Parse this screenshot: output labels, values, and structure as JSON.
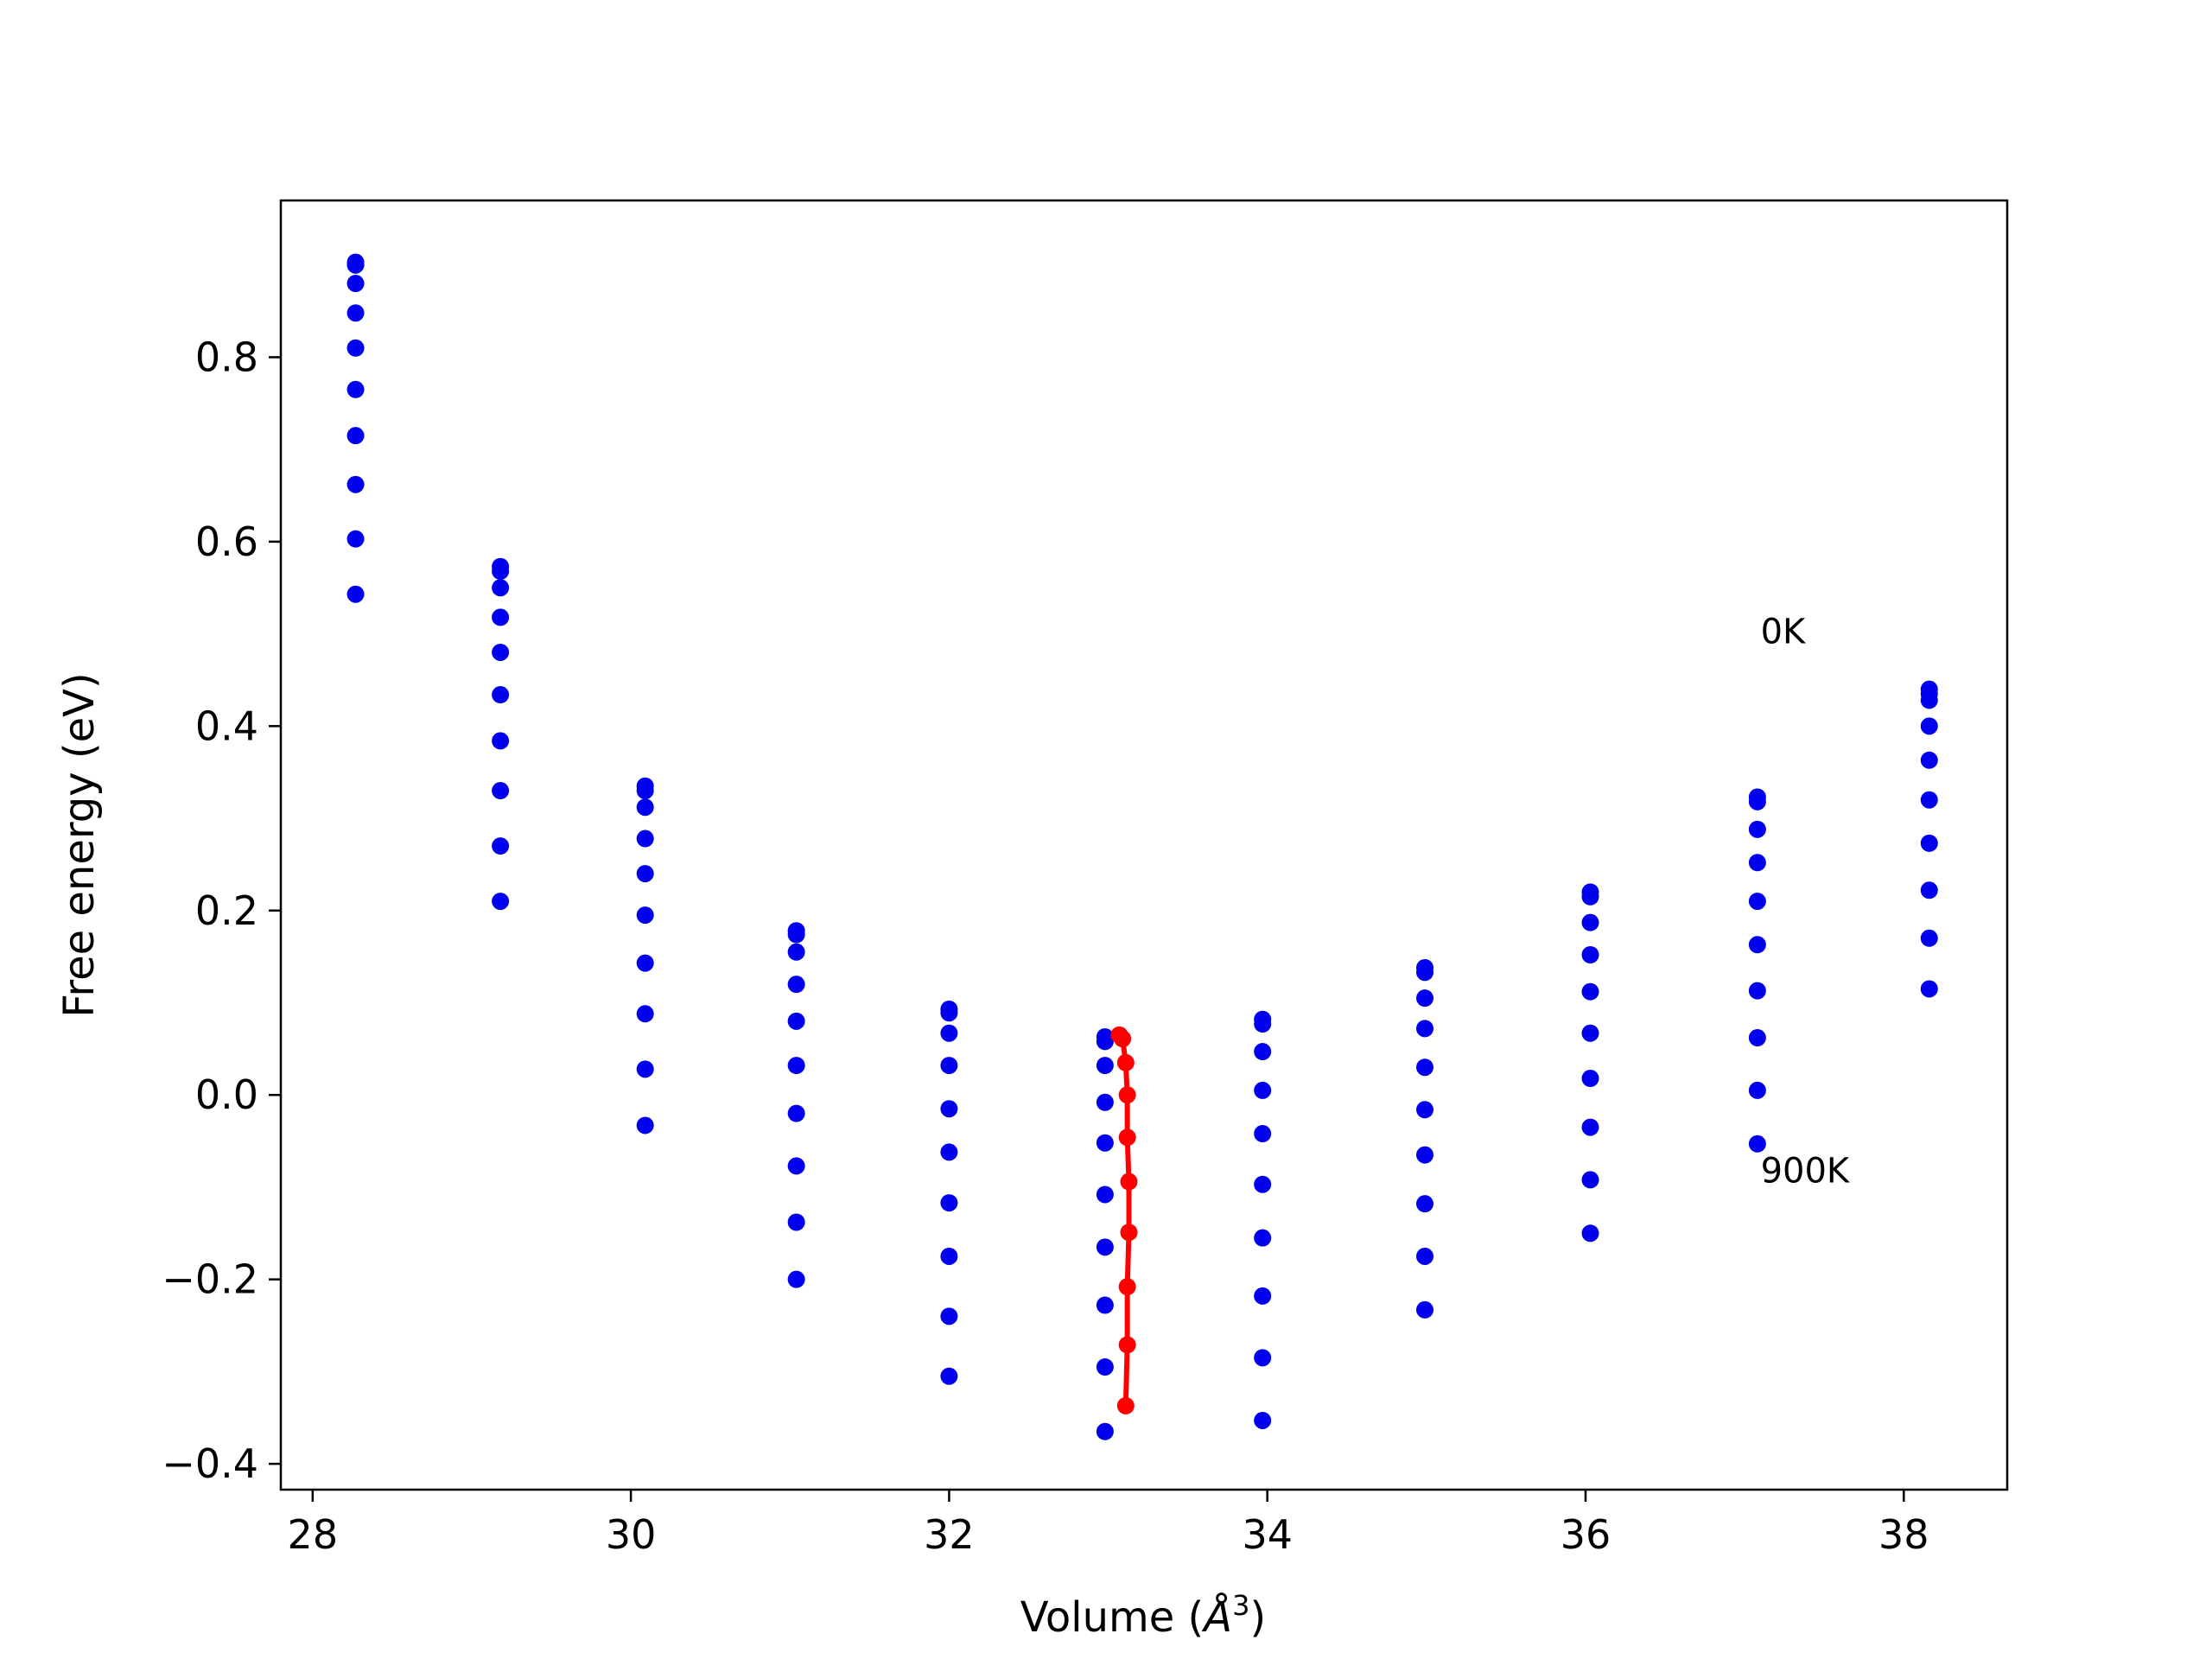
{
  "chart_data": {
    "type": "line",
    "xlabel": "Volume (Å³)",
    "xlabel_main": "Volume (",
    "xlabel_unit": "Å",
    "xlabel_exp": "3",
    "xlabel_close": ")",
    "ylabel": "Free energy (eV)",
    "xlim": [
      27.8,
      38.65
    ],
    "ylim": [
      -0.428,
      0.97
    ],
    "xticks": [
      28,
      30,
      32,
      34,
      36,
      38
    ],
    "xtick_labels": [
      "28",
      "30",
      "32",
      "34",
      "36",
      "38"
    ],
    "yticks": [
      -0.4,
      -0.2,
      0.0,
      0.2,
      0.4,
      0.6,
      0.8
    ],
    "ytick_labels": [
      "−0.4",
      "−0.2",
      "0.0",
      "0.2",
      "0.4",
      "0.6",
      "0.8"
    ],
    "grid": false,
    "annotations": [
      {
        "text": "0K",
        "x": 37.1,
        "y": 0.49
      },
      {
        "text": "900K",
        "x": 37.1,
        "y": -0.095
      }
    ],
    "volumes": [
      28.27,
      29.18,
      30.09,
      31.04,
      32.0,
      32.98,
      33.97,
      34.99,
      36.03,
      37.08,
      38.16
    ],
    "series": [
      {
        "color": "#0000ee",
        "values": [
          0.903,
          0.573,
          0.335,
          0.178,
          0.093,
          0.063,
          0.082,
          0.138,
          0.22,
          0.323,
          0.44
        ]
      },
      {
        "color": "#0000ee",
        "values": [
          0.9,
          0.568,
          0.33,
          0.174,
          0.089,
          0.058,
          0.077,
          0.133,
          0.215,
          0.318,
          0.435
        ]
      },
      {
        "color": "#0000ee",
        "values": [
          0.88,
          0.55,
          0.312,
          0.155,
          0.067,
          0.032,
          0.047,
          0.105,
          0.187,
          0.288,
          0.428
        ]
      },
      {
        "color": "#0000ee",
        "values": [
          0.848,
          0.518,
          0.278,
          0.12,
          0.032,
          -0.008,
          0.005,
          0.072,
          0.152,
          0.252,
          0.4
        ]
      },
      {
        "color": "#0000ee",
        "values": [
          0.81,
          0.48,
          0.24,
          0.08,
          -0.015,
          -0.052,
          -0.042,
          0.03,
          0.112,
          0.21,
          0.363
        ]
      },
      {
        "color": "#0000ee",
        "values": [
          0.765,
          0.434,
          0.195,
          0.032,
          -0.062,
          -0.108,
          -0.097,
          -0.016,
          0.067,
          0.163,
          0.32
        ]
      },
      {
        "color": "#0000ee",
        "values": [
          0.715,
          0.384,
          0.143,
          -0.02,
          -0.117,
          -0.165,
          -0.155,
          -0.065,
          0.018,
          0.113,
          0.273
        ]
      },
      {
        "color": "#0000ee",
        "values": [
          0.662,
          0.33,
          0.088,
          -0.077,
          -0.175,
          -0.228,
          -0.218,
          -0.118,
          -0.035,
          0.062,
          0.222
        ]
      },
      {
        "color": "#0000ee",
        "values": [
          0.603,
          0.27,
          0.028,
          -0.138,
          -0.24,
          -0.295,
          -0.285,
          -0.175,
          -0.092,
          0.005,
          0.17
        ]
      },
      {
        "color": "#0000ee",
        "values": [
          0.543,
          0.21,
          -0.033,
          -0.2,
          -0.305,
          -0.365,
          -0.353,
          -0.233,
          -0.15,
          -0.053,
          0.115
        ]
      }
    ],
    "equilibrium_line": {
      "color": "#ff0000",
      "x": [
        33.07,
        33.09,
        33.11,
        33.12,
        33.12,
        33.13,
        33.13,
        33.12,
        33.12,
        33.11
      ],
      "y": [
        0.065,
        0.061,
        0.035,
        0.0,
        -0.046,
        -0.094,
        -0.149,
        -0.208,
        -0.271,
        -0.337
      ]
    }
  }
}
